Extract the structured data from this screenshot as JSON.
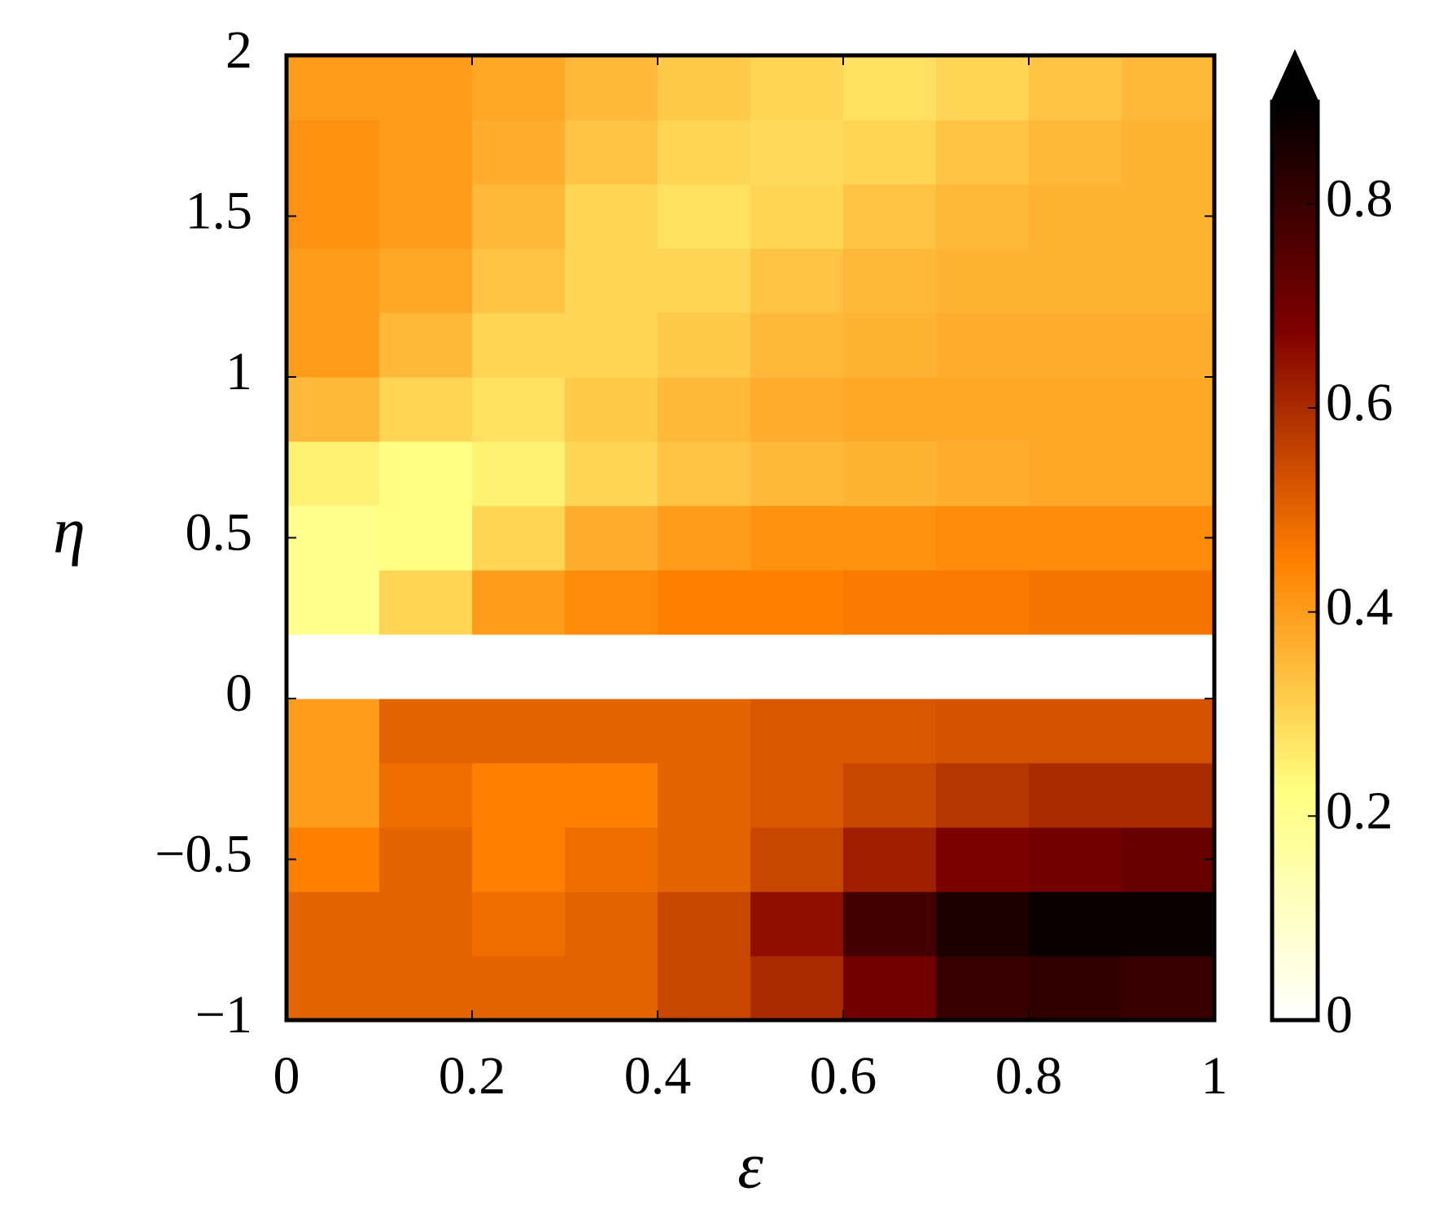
{
  "chart_data": {
    "type": "heatmap",
    "x_label": "ε",
    "y_label": "η",
    "x": [
      0.05,
      0.15,
      0.25,
      0.35,
      0.45,
      0.55,
      0.65,
      0.75,
      0.85,
      0.95
    ],
    "y": [
      -0.9,
      -0.7,
      -0.5,
      -0.3,
      -0.1,
      0.1,
      0.3,
      0.5,
      0.7,
      0.9,
      1.1,
      1.3,
      1.5,
      1.7,
      1.9
    ],
    "values": [
      [
        0.5,
        0.5,
        0.5,
        0.5,
        0.55,
        0.6,
        0.7,
        0.8,
        0.82,
        0.8
      ],
      [
        0.5,
        0.5,
        0.48,
        0.5,
        0.55,
        0.65,
        0.78,
        0.85,
        0.88,
        0.88
      ],
      [
        0.45,
        0.5,
        0.45,
        0.48,
        0.5,
        0.55,
        0.62,
        0.68,
        0.7,
        0.72
      ],
      [
        0.4,
        0.48,
        0.45,
        0.45,
        0.5,
        0.52,
        0.55,
        0.58,
        0.6,
        0.6
      ],
      [
        0.4,
        0.5,
        0.5,
        0.5,
        0.5,
        0.52,
        0.52,
        0.53,
        0.53,
        0.53
      ],
      [
        0,
        0,
        0,
        0,
        0,
        0,
        0,
        0,
        0,
        0
      ],
      [
        0.2,
        0.3,
        0.4,
        0.43,
        0.45,
        0.45,
        0.46,
        0.46,
        0.47,
        0.47
      ],
      [
        0.2,
        0.22,
        0.3,
        0.37,
        0.4,
        0.42,
        0.42,
        0.43,
        0.43,
        0.43
      ],
      [
        0.25,
        0.22,
        0.25,
        0.3,
        0.33,
        0.35,
        0.36,
        0.37,
        0.38,
        0.38
      ],
      [
        0.35,
        0.3,
        0.28,
        0.32,
        0.35,
        0.37,
        0.38,
        0.38,
        0.38,
        0.38
      ],
      [
        0.4,
        0.35,
        0.3,
        0.3,
        0.32,
        0.35,
        0.36,
        0.37,
        0.37,
        0.37
      ],
      [
        0.4,
        0.38,
        0.33,
        0.3,
        0.3,
        0.33,
        0.35,
        0.36,
        0.36,
        0.36
      ],
      [
        0.42,
        0.4,
        0.35,
        0.3,
        0.28,
        0.3,
        0.33,
        0.35,
        0.36,
        0.36
      ],
      [
        0.42,
        0.4,
        0.37,
        0.33,
        0.3,
        0.29,
        0.3,
        0.33,
        0.35,
        0.36
      ],
      [
        0.4,
        0.4,
        0.38,
        0.35,
        0.32,
        0.3,
        0.28,
        0.3,
        0.33,
        0.35
      ]
    ],
    "xlim": [
      0,
      1
    ],
    "xticks": [
      0,
      0.2,
      0.4,
      0.6,
      0.8,
      1
    ],
    "ylim": [
      -1,
      2
    ],
    "yticks": [
      {
        "value": -1,
        "label": "−1"
      },
      {
        "value": -0.5,
        "label": "−0.5"
      },
      0,
      0.5,
      1,
      1.5,
      2
    ],
    "colorbar": {
      "lim": [
        0,
        0.9
      ],
      "ticks": [
        0,
        0.2,
        0.4,
        0.6,
        0.8
      ],
      "extend": "max"
    },
    "colormap": [
      "#ffffff",
      "#ffff80",
      "#ff8000",
      "#800000",
      "#000000"
    ]
  }
}
